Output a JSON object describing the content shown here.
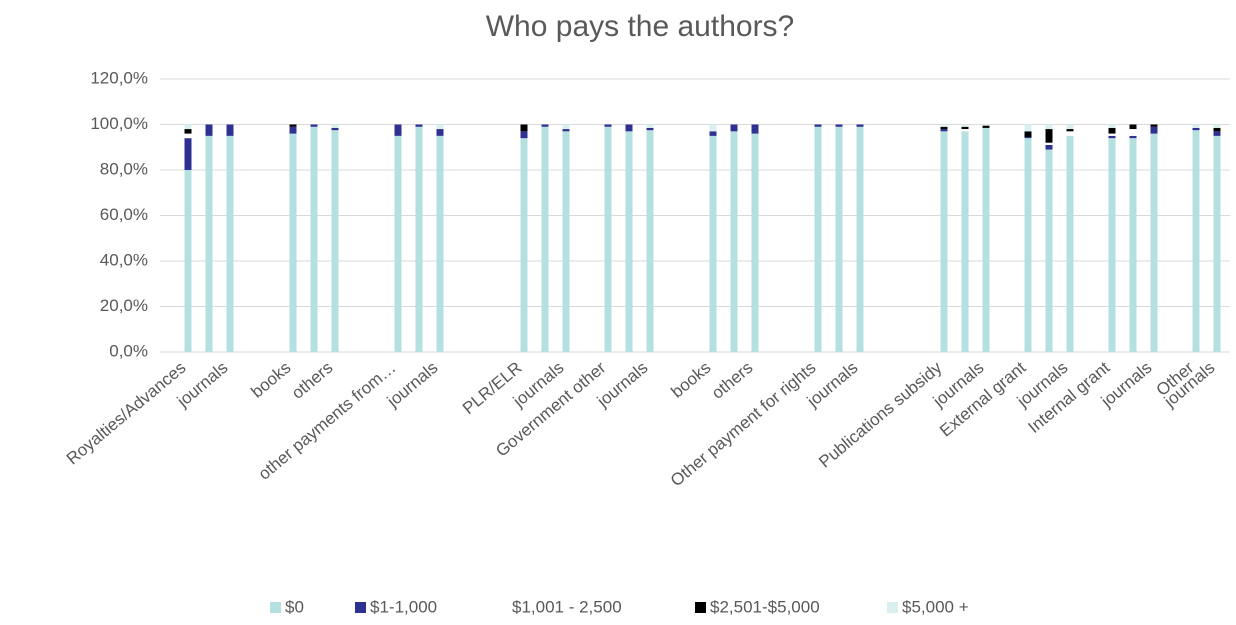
{
  "chart_data": {
    "type": "stacked_bar",
    "title": "Who pays the authors?",
    "categories": [
      "Royalties/Advances",
      null,
      "journals",
      null,
      null,
      "books",
      null,
      "others",
      null,
      null,
      "other payments from…",
      null,
      "journals",
      null,
      null,
      null,
      "PLR/ELR",
      null,
      "journals",
      null,
      "Government other",
      null,
      "journals",
      null,
      null,
      "books",
      null,
      "others",
      null,
      null,
      "Other payment for rights",
      null,
      "journals",
      null,
      null,
      null,
      "Publications subsidy",
      null,
      "journals",
      null,
      "External grant",
      null,
      "journals",
      null,
      "Internal grant",
      null,
      "journals",
      null,
      "Other",
      "journals"
    ],
    "series": [
      {
        "name": "$0",
        "color": "#b4e0e0",
        "values": [
          80,
          95,
          95,
          null,
          null,
          96,
          99,
          97.5,
          null,
          null,
          95,
          99,
          95,
          null,
          null,
          null,
          94,
          99,
          97,
          null,
          99,
          97,
          97.5,
          null,
          null,
          95,
          97,
          96,
          null,
          null,
          99,
          99,
          99,
          null,
          null,
          null,
          97,
          97,
          98.5,
          null,
          94,
          89,
          95,
          null,
          94,
          94,
          96,
          null,
          97.5,
          95
        ]
      },
      {
        "name": "$1-1,000",
        "color": "#2e3192",
        "values": [
          14,
          5,
          5,
          null,
          null,
          3,
          1,
          1,
          null,
          null,
          5,
          1,
          3,
          null,
          null,
          null,
          3,
          1,
          1,
          null,
          1,
          3,
          1,
          null,
          null,
          2,
          3,
          4,
          null,
          null,
          1,
          1,
          1,
          null,
          null,
          null,
          1,
          0,
          0,
          null,
          0.5,
          2,
          0,
          null,
          1,
          1,
          3,
          null,
          1,
          2
        ]
      },
      {
        "name": "$1,001 - 2,500",
        "color": "#ffffff",
        "values": [
          2,
          0,
          0,
          null,
          null,
          0,
          0,
          0,
          null,
          null,
          0,
          0,
          0,
          null,
          null,
          null,
          0,
          0,
          0,
          null,
          0,
          0,
          0,
          null,
          null,
          0,
          0,
          0,
          null,
          null,
          0,
          0,
          0,
          null,
          null,
          null,
          0,
          1,
          0,
          null,
          0,
          1,
          2,
          null,
          1,
          3,
          0,
          null,
          0,
          0
        ]
      },
      {
        "name": "$2,501-$5,000",
        "color": "#000000",
        "values": [
          2,
          0,
          0,
          null,
          null,
          1,
          0,
          0,
          null,
          null,
          0,
          0,
          0,
          null,
          null,
          null,
          3,
          0,
          0,
          null,
          0,
          0,
          0,
          null,
          null,
          0,
          0,
          0,
          null,
          null,
          0,
          0,
          0,
          null,
          null,
          null,
          1,
          1,
          1,
          null,
          2.5,
          6,
          1,
          null,
          2.5,
          2,
          1,
          null,
          0,
          1.5
        ]
      },
      {
        "name": "$5,000 +",
        "color": "#daf0f0",
        "values": [
          2,
          0,
          0,
          null,
          null,
          0,
          0,
          1.5,
          null,
          null,
          0,
          0,
          2,
          null,
          null,
          null,
          0,
          0,
          2,
          null,
          0,
          0,
          1.5,
          null,
          null,
          3,
          0,
          0,
          null,
          null,
          0,
          0,
          0,
          null,
          null,
          null,
          1,
          1,
          0.5,
          null,
          3,
          2,
          2,
          null,
          1.5,
          0,
          0,
          null,
          1.5,
          1.5
        ]
      }
    ],
    "ylim": [
      0,
      120
    ],
    "yticks": [
      {
        "value": 0,
        "label": "0,0%"
      },
      {
        "value": 20,
        "label": "20,0%"
      },
      {
        "value": 40,
        "label": "40,0%"
      },
      {
        "value": 60,
        "label": "60,0%"
      },
      {
        "value": 80,
        "label": "80,0%"
      },
      {
        "value": 100,
        "label": "100,0%"
      },
      {
        "value": 120,
        "label": "120,0%"
      }
    ],
    "grid": true,
    "legend": "bottom"
  }
}
